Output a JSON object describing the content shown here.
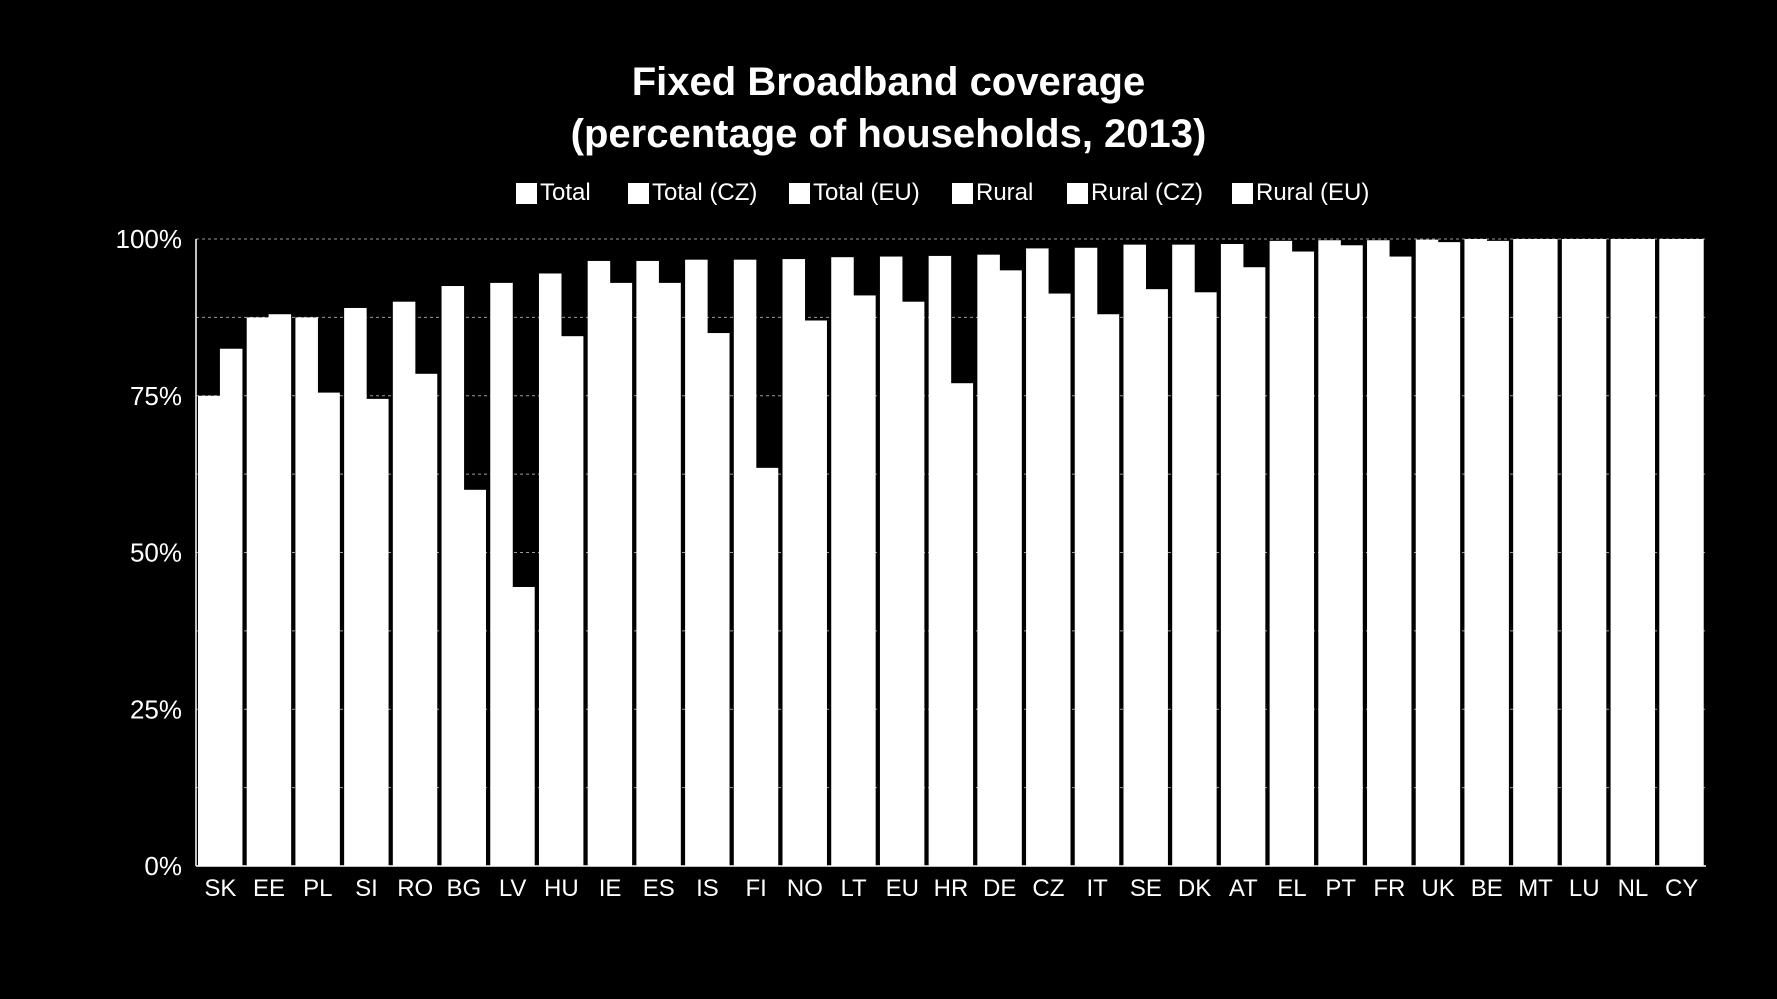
{
  "chart_data": {
    "type": "bar",
    "title_line1": "Fixed Broadband coverage",
    "title_line2": "(percentage of households, 2013)",
    "legend": [
      "Total",
      "Total (CZ)",
      "Total (EU)",
      "Rural",
      "Rural (CZ)",
      "Rural (EU)"
    ],
    "categories": [
      "SK",
      "EE",
      "PL",
      "SI",
      "RO",
      "BG",
      "LV",
      "HU",
      "IE",
      "ES",
      "IS",
      "FI",
      "NO",
      "LT",
      "EU",
      "HR",
      "DE",
      "CZ",
      "IT",
      "SE",
      "DK",
      "AT",
      "EL",
      "PT",
      "FR",
      "UK",
      "BE",
      "MT",
      "LU",
      "NL",
      "CY"
    ],
    "series": [
      {
        "name": "Total",
        "values": [
          75,
          87.5,
          87.5,
          89,
          90,
          92.5,
          93,
          94.5,
          96.5,
          96.5,
          96.7,
          96.7,
          96.8,
          97.1,
          97.2,
          97.3,
          97.5,
          98.5,
          98.6,
          99.1,
          99.1,
          99.2,
          99.7,
          99.8,
          99.8,
          99.9,
          100,
          100,
          100,
          100,
          100
        ]
      },
      {
        "name": "Rural",
        "values": [
          82.5,
          88,
          75.5,
          74.5,
          78.5,
          60,
          44.5,
          84.5,
          93,
          93,
          85,
          63.5,
          87,
          91,
          90,
          77,
          95,
          91.3,
          88,
          92,
          91.5,
          95.5,
          98,
          99,
          97.2,
          99.5,
          99.7,
          100,
          100,
          100,
          100
        ]
      }
    ],
    "yticks": [
      "0%",
      "25%",
      "50%",
      "75%",
      "100%"
    ],
    "ylim": [
      0,
      100
    ],
    "grid": true,
    "legend_position": "top"
  }
}
